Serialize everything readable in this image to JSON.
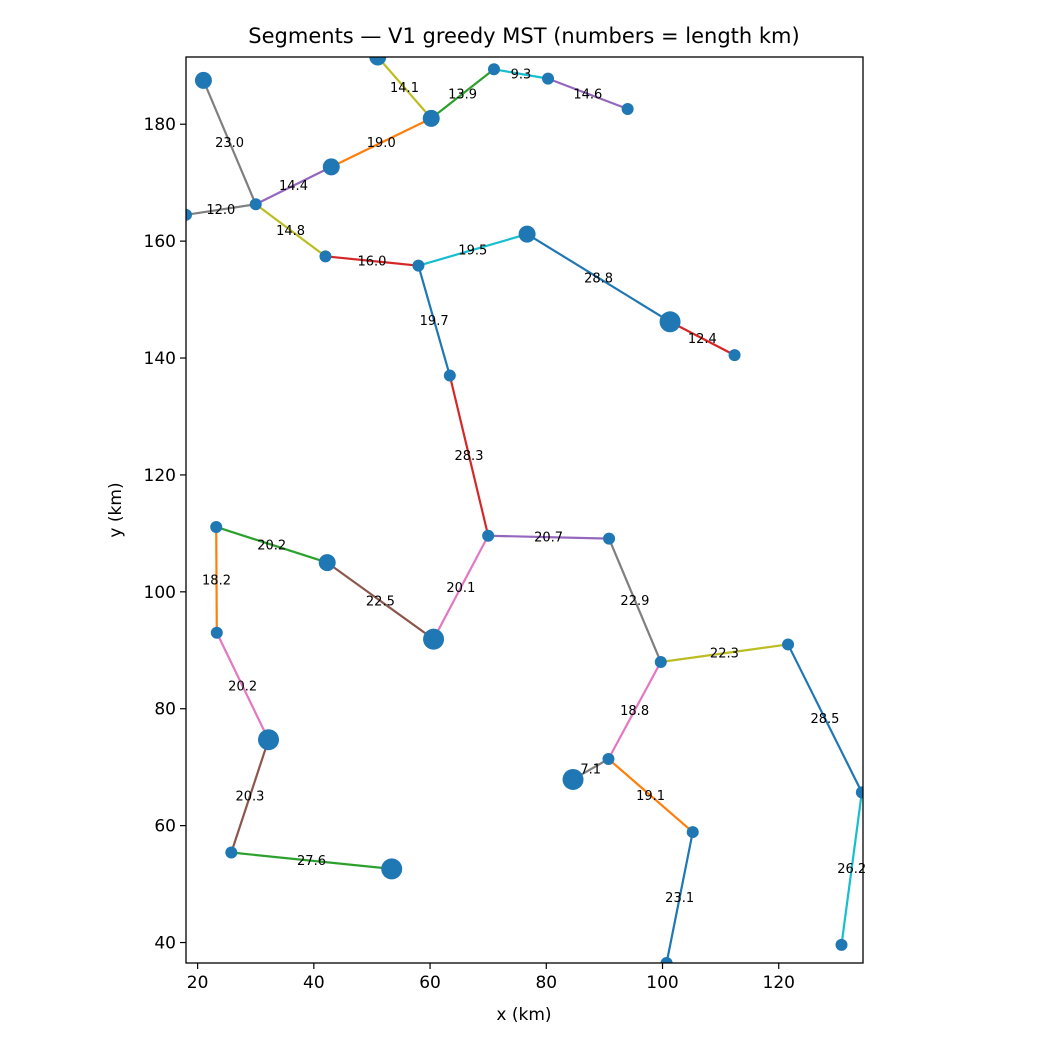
{
  "chart_data": {
    "type": "scatter",
    "title": "Segments — V1 greedy MST (numbers = length km)",
    "xlabel": "x (km)",
    "ylabel": "y (km)",
    "xlim": [
      18,
      134.5
    ],
    "ylim": [
      36.5,
      191.5
    ],
    "xticks": [
      20,
      40,
      60,
      80,
      100,
      120
    ],
    "yticks": [
      40,
      60,
      80,
      100,
      120,
      140,
      160,
      180
    ],
    "grid": false,
    "nodes": [
      {
        "id": 0,
        "x": 21.0,
        "y": 187.5,
        "size": "medium"
      },
      {
        "id": 1,
        "x": 30.0,
        "y": 166.3,
        "size": "small"
      },
      {
        "id": 2,
        "x": 18.0,
        "y": 164.5,
        "size": "small"
      },
      {
        "id": 3,
        "x": 42.0,
        "y": 157.4,
        "size": "small"
      },
      {
        "id": 4,
        "x": 43.0,
        "y": 172.7,
        "size": "medium"
      },
      {
        "id": 5,
        "x": 60.2,
        "y": 181.0,
        "size": "medium"
      },
      {
        "id": 6,
        "x": 51.0,
        "y": 191.5,
        "size": "medium"
      },
      {
        "id": 7,
        "x": 71.0,
        "y": 189.4,
        "size": "small"
      },
      {
        "id": 8,
        "x": 80.3,
        "y": 187.8,
        "size": "small"
      },
      {
        "id": 9,
        "x": 94.0,
        "y": 182.6,
        "size": "small"
      },
      {
        "id": 10,
        "x": 58.0,
        "y": 155.8,
        "size": "small"
      },
      {
        "id": 11,
        "x": 76.7,
        "y": 161.2,
        "size": "medium"
      },
      {
        "id": 12,
        "x": 101.3,
        "y": 146.2,
        "size": "large"
      },
      {
        "id": 13,
        "x": 112.4,
        "y": 140.5,
        "size": "small"
      },
      {
        "id": 14,
        "x": 63.4,
        "y": 137.0,
        "size": "small"
      },
      {
        "id": 15,
        "x": 70.0,
        "y": 109.6,
        "size": "small"
      },
      {
        "id": 16,
        "x": 90.8,
        "y": 109.1,
        "size": "small"
      },
      {
        "id": 17,
        "x": 60.6,
        "y": 91.9,
        "size": "large"
      },
      {
        "id": 18,
        "x": 42.3,
        "y": 105.0,
        "size": "medium"
      },
      {
        "id": 19,
        "x": 23.2,
        "y": 111.1,
        "size": "small"
      },
      {
        "id": 20,
        "x": 23.3,
        "y": 93.0,
        "size": "small"
      },
      {
        "id": 21,
        "x": 32.2,
        "y": 74.7,
        "size": "large"
      },
      {
        "id": 22,
        "x": 25.8,
        "y": 55.4,
        "size": "small"
      },
      {
        "id": 23,
        "x": 53.4,
        "y": 52.6,
        "size": "large"
      },
      {
        "id": 24,
        "x": 99.7,
        "y": 88.0,
        "size": "small"
      },
      {
        "id": 25,
        "x": 121.6,
        "y": 91.0,
        "size": "small"
      },
      {
        "id": 26,
        "x": 134.3,
        "y": 65.7,
        "size": "small"
      },
      {
        "id": 27,
        "x": 130.8,
        "y": 39.6,
        "size": "small"
      },
      {
        "id": 28,
        "x": 90.7,
        "y": 71.4,
        "size": "small"
      },
      {
        "id": 29,
        "x": 84.6,
        "y": 67.9,
        "size": "large"
      },
      {
        "id": 30,
        "x": 105.2,
        "y": 58.9,
        "size": "small"
      },
      {
        "id": 31,
        "x": 100.7,
        "y": 36.5,
        "size": "small"
      }
    ],
    "segments": [
      {
        "from": 0,
        "to": 1,
        "length": "23.0",
        "color": "#7f7f7f"
      },
      {
        "from": 2,
        "to": 1,
        "length": "12.0",
        "color": "#7f7f7f"
      },
      {
        "from": 1,
        "to": 3,
        "length": "14.8",
        "color": "#bcbd22"
      },
      {
        "from": 1,
        "to": 4,
        "length": "14.4",
        "color": "#9467bd"
      },
      {
        "from": 4,
        "to": 5,
        "length": "19.0",
        "color": "#ff7f0e"
      },
      {
        "from": 6,
        "to": 5,
        "length": "14.1",
        "color": "#bcbd22"
      },
      {
        "from": 5,
        "to": 7,
        "length": "13.9",
        "color": "#2ca02c"
      },
      {
        "from": 7,
        "to": 8,
        "length": "9.3",
        "color": "#17becf"
      },
      {
        "from": 8,
        "to": 9,
        "length": "14.6",
        "color": "#9467bd"
      },
      {
        "from": 3,
        "to": 10,
        "length": "16.0",
        "color": "#d62728"
      },
      {
        "from": 10,
        "to": 11,
        "length": "19.5",
        "color": "#17becf"
      },
      {
        "from": 11,
        "to": 12,
        "length": "28.8",
        "color": "#1f77b4"
      },
      {
        "from": 12,
        "to": 13,
        "length": "12.4",
        "color": "#d62728"
      },
      {
        "from": 10,
        "to": 14,
        "length": "19.7",
        "color": "#1f77b4"
      },
      {
        "from": 14,
        "to": 15,
        "length": "28.3",
        "color": "#d62728"
      },
      {
        "from": 15,
        "to": 16,
        "length": "20.7",
        "color": "#9467bd"
      },
      {
        "from": 15,
        "to": 17,
        "length": "20.1",
        "color": "#e377c2"
      },
      {
        "from": 18,
        "to": 17,
        "length": "22.5",
        "color": "#8c564b"
      },
      {
        "from": 19,
        "to": 18,
        "length": "20.2",
        "color": "#2ca02c"
      },
      {
        "from": 19,
        "to": 20,
        "length": "18.2",
        "color": "#ff7f0e"
      },
      {
        "from": 20,
        "to": 21,
        "length": "20.2",
        "color": "#e377c2"
      },
      {
        "from": 21,
        "to": 22,
        "length": "20.3",
        "color": "#8c564b"
      },
      {
        "from": 22,
        "to": 23,
        "length": "27.6",
        "color": "#2ca02c"
      },
      {
        "from": 16,
        "to": 24,
        "length": "22.9",
        "color": "#7f7f7f"
      },
      {
        "from": 24,
        "to": 25,
        "length": "22.3",
        "color": "#bcbd22"
      },
      {
        "from": 25,
        "to": 26,
        "length": "28.5",
        "color": "#1f77b4"
      },
      {
        "from": 26,
        "to": 27,
        "length": "26.2",
        "color": "#17becf"
      },
      {
        "from": 24,
        "to": 28,
        "length": "18.8",
        "color": "#e377c2"
      },
      {
        "from": 28,
        "to": 29,
        "length": "7.1",
        "color": "#7f7f7f"
      },
      {
        "from": 28,
        "to": 30,
        "length": "19.1",
        "color": "#ff7f0e"
      },
      {
        "from": 30,
        "to": 31,
        "length": "23.1",
        "color": "#1f77b4"
      }
    ],
    "node_color": "#1f77b4"
  }
}
